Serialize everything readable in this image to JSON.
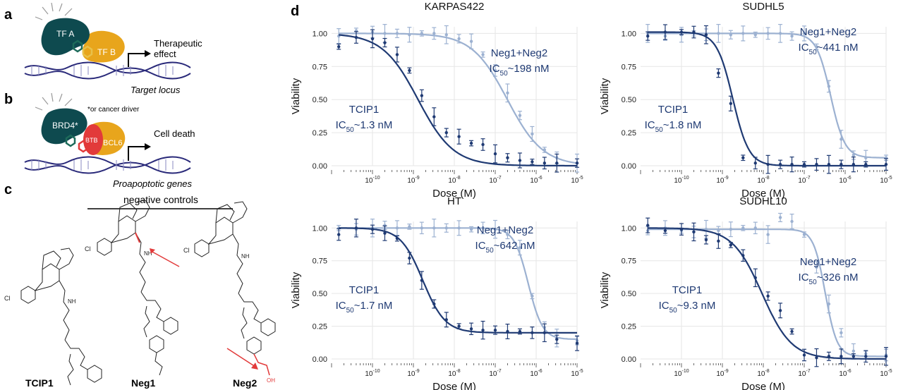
{
  "panels": {
    "a": "a",
    "b": "b",
    "c": "c",
    "d": "d"
  },
  "panel_a": {
    "tf_a": "TF A",
    "tf_b": "TF B",
    "effect": "Therapeutic\neffect",
    "locus": "Target locus"
  },
  "panel_b": {
    "brd4": "BRD4*",
    "bcl6": "BCL6",
    "btb": "BTB",
    "note": "*or cancer driver",
    "effect": "Cell death",
    "genes": "Proapoptotic genes"
  },
  "panel_c": {
    "header": "negative controls",
    "compounds": [
      "TCIP1",
      "Neg1",
      "Neg2"
    ]
  },
  "colors": {
    "tcip1": "#1f3a73",
    "neg": "#9cb1d1",
    "tf_a": "#0e4a4f",
    "tf_b": "#e8a51c",
    "brd4": "#0e4a4f",
    "bcl6": "#e8a51c",
    "btb": "#e23a3a",
    "dna": "#2a2a7a",
    "arrow_red": "#e23a3a"
  },
  "chart_data": [
    {
      "type": "scatter",
      "title": "KARPAS422",
      "xlabel": "Dose (M)",
      "ylabel": "Viability",
      "xscale": "log",
      "xlim": [
        1e-11,
        1e-05
      ],
      "ylim": [
        0,
        1.05
      ],
      "yticks": [
        "0.00",
        "0.25",
        "0.50",
        "0.75",
        "1.00"
      ],
      "xticks": [
        "10-10",
        "10-9",
        "10-8",
        "10-7",
        "10-6",
        "10-5"
      ],
      "series": [
        {
          "name": "TCIP1",
          "ic50_label": "IC50~1.3 nM",
          "ic50": 1.3e-09,
          "hill": 1.0,
          "bottom": 0.0,
          "top": 1.0,
          "points": [
            [
              1.5e-11,
              0.9
            ],
            [
              4e-11,
              0.97
            ],
            [
              1e-10,
              0.96
            ],
            [
              2e-10,
              0.93
            ],
            [
              4e-10,
              0.84
            ],
            [
              8e-10,
              0.72
            ],
            [
              1.6e-09,
              0.53
            ],
            [
              3.2e-09,
              0.37
            ],
            [
              6.4e-09,
              0.25
            ],
            [
              1.3e-08,
              0.22
            ],
            [
              2.6e-08,
              0.17
            ],
            [
              5e-08,
              0.16
            ],
            [
              1e-07,
              0.09
            ],
            [
              2e-07,
              0.06
            ],
            [
              4e-07,
              0.04
            ],
            [
              8e-07,
              0.03
            ],
            [
              1.6e-06,
              0.02
            ],
            [
              3.2e-06,
              0.02
            ],
            [
              1e-05,
              0.02
            ]
          ]
        },
        {
          "name": "Neg1+Neg2",
          "ic50_label": "IC50~198 nM",
          "ic50": 1.98e-07,
          "hill": 1.0,
          "bottom": 0.0,
          "top": 1.0,
          "points": [
            [
              1.5e-11,
              0.98
            ],
            [
              4e-11,
              1.02
            ],
            [
              1e-10,
              1.01
            ],
            [
              2e-10,
              1.0
            ],
            [
              4e-10,
              1.0
            ],
            [
              8e-10,
              0.99
            ],
            [
              1.6e-09,
              1.0
            ],
            [
              3.2e-09,
              1.0
            ],
            [
              6.4e-09,
              0.99
            ],
            [
              1.3e-08,
              0.96
            ],
            [
              2.6e-08,
              0.94
            ],
            [
              5e-08,
              0.84
            ],
            [
              1e-07,
              0.72
            ],
            [
              2e-07,
              0.55
            ],
            [
              4e-07,
              0.38
            ],
            [
              8e-07,
              0.24
            ],
            [
              1.6e-06,
              0.12
            ],
            [
              3.2e-06,
              0.06
            ],
            [
              1e-05,
              0.02
            ]
          ]
        }
      ]
    },
    {
      "type": "scatter",
      "title": "SUDHL5",
      "xlabel": "Dose (M)",
      "ylabel": "Viability",
      "xscale": "log",
      "xlim": [
        1e-11,
        1e-05
      ],
      "ylim": [
        0,
        1.05
      ],
      "yticks": [
        "0.00",
        "0.25",
        "0.50",
        "0.75",
        "1.00"
      ],
      "xticks": [
        "10-10",
        "10-9",
        "10-8",
        "10-7",
        "10-6",
        "10-5"
      ],
      "series": [
        {
          "name": "TCIP1",
          "ic50_label": "IC50~1.8 nM",
          "ic50": 1.8e-09,
          "hill": 2.2,
          "bottom": 0.0,
          "top": 1.01,
          "points": [
            [
              1.5e-11,
              0.98
            ],
            [
              4e-11,
              1.01
            ],
            [
              1e-10,
              1.01
            ],
            [
              2e-10,
              1.01
            ],
            [
              4e-10,
              0.99
            ],
            [
              8e-10,
              0.7
            ],
            [
              1.6e-09,
              0.47
            ],
            [
              3.2e-09,
              0.06
            ],
            [
              6.4e-09,
              0.02
            ],
            [
              1.3e-08,
              0.01
            ],
            [
              2.6e-08,
              0.01
            ],
            [
              5e-08,
              0.01
            ],
            [
              1e-07,
              0.01
            ],
            [
              2e-07,
              0.01
            ],
            [
              4e-07,
              0.01
            ],
            [
              8e-07,
              0.01
            ],
            [
              1.6e-06,
              0.01
            ],
            [
              3.2e-06,
              0.01
            ],
            [
              1e-05,
              0.01
            ]
          ]
        },
        {
          "name": "Neg1+Neg2",
          "ic50_label": "IC50~441 nM",
          "ic50": 4.41e-07,
          "hill": 2.5,
          "bottom": 0.06,
          "top": 1.0,
          "points": [
            [
              1.5e-11,
              1.0
            ],
            [
              4e-11,
              0.98
            ],
            [
              1e-10,
              0.99
            ],
            [
              2e-10,
              1.0
            ],
            [
              4e-10,
              0.99
            ],
            [
              8e-10,
              1.0
            ],
            [
              1.6e-09,
              0.99
            ],
            [
              3.2e-09,
              1.0
            ],
            [
              6.4e-09,
              0.99
            ],
            [
              1.3e-08,
              1.0
            ],
            [
              2.6e-08,
              1.0
            ],
            [
              5e-08,
              0.98
            ],
            [
              1e-07,
              1.0
            ],
            [
              2e-07,
              0.9
            ],
            [
              4e-07,
              0.6
            ],
            [
              8e-07,
              0.2
            ],
            [
              1.6e-06,
              0.08
            ],
            [
              3.2e-06,
              0.06
            ],
            [
              1e-05,
              0.06
            ]
          ]
        }
      ]
    },
    {
      "type": "scatter",
      "title": "HT",
      "xlabel": "Dose (M)",
      "ylabel": "Viability",
      "xscale": "log",
      "xlim": [
        1e-11,
        1e-05
      ],
      "ylim": [
        0,
        1.05
      ],
      "yticks": [
        "0.00",
        "0.25",
        "0.50",
        "0.75",
        "1.00"
      ],
      "xticks": [
        "10-10",
        "10-9",
        "10-8",
        "10-7",
        "10-6",
        "10-5"
      ],
      "series": [
        {
          "name": "TCIP1",
          "ic50_label": "IC50~1.7 nM",
          "ic50": 1.7e-09,
          "hill": 1.6,
          "bottom": 0.2,
          "top": 1.0,
          "points": [
            [
              1.5e-11,
              0.95
            ],
            [
              4e-11,
              1.0
            ],
            [
              1e-10,
              0.99
            ],
            [
              2e-10,
              0.96
            ],
            [
              4e-10,
              0.92
            ],
            [
              8e-10,
              0.77
            ],
            [
              1.6e-09,
              0.6
            ],
            [
              3.2e-09,
              0.42
            ],
            [
              6.4e-09,
              0.3
            ],
            [
              1.3e-08,
              0.25
            ],
            [
              2.6e-08,
              0.23
            ],
            [
              5e-08,
              0.22
            ],
            [
              1e-07,
              0.22
            ],
            [
              2e-07,
              0.21
            ],
            [
              4e-07,
              0.21
            ],
            [
              8e-07,
              0.2
            ],
            [
              1.6e-06,
              0.2
            ],
            [
              3.2e-06,
              0.15
            ],
            [
              1e-05,
              0.12
            ]
          ]
        },
        {
          "name": "Neg1+Neg2",
          "ic50_label": "IC50~642 nM",
          "ic50": 6.42e-07,
          "hill": 2.5,
          "bottom": 0.15,
          "top": 1.0,
          "points": [
            [
              1.5e-11,
              1.0
            ],
            [
              4e-11,
              0.99
            ],
            [
              1e-10,
              1.0
            ],
            [
              2e-10,
              1.02
            ],
            [
              4e-10,
              1.0
            ],
            [
              8e-10,
              1.01
            ],
            [
              1.6e-09,
              1.0
            ],
            [
              3.2e-09,
              1.0
            ],
            [
              6.4e-09,
              1.0
            ],
            [
              1.3e-08,
              1.0
            ],
            [
              2.6e-08,
              0.99
            ],
            [
              5e-08,
              1.0
            ],
            [
              1e-07,
              0.99
            ],
            [
              2e-07,
              0.95
            ],
            [
              4e-07,
              0.85
            ],
            [
              8e-07,
              0.48
            ],
            [
              1.6e-06,
              0.24
            ],
            [
              3.2e-06,
              0.16
            ],
            [
              1e-05,
              0.14
            ]
          ]
        }
      ]
    },
    {
      "type": "scatter",
      "title": "SUDHL10",
      "xlabel": "Dose (M)",
      "ylabel": "Viability",
      "xscale": "log",
      "xlim": [
        1e-11,
        1e-05
      ],
      "ylim": [
        0,
        1.05
      ],
      "yticks": [
        "0.00",
        "0.25",
        "0.50",
        "0.75",
        "1.00"
      ],
      "xticks": [
        "10-10",
        "10-9",
        "10-8",
        "10-7",
        "10-6",
        "10-5"
      ],
      "series": [
        {
          "name": "TCIP1",
          "ic50_label": "IC50~9.3 nM",
          "ic50": 9.3e-09,
          "hill": 1.2,
          "bottom": 0.0,
          "top": 1.0,
          "points": [
            [
              1.5e-11,
              1.02
            ],
            [
              4e-11,
              0.98
            ],
            [
              1e-10,
              0.99
            ],
            [
              2e-10,
              0.97
            ],
            [
              4e-10,
              0.91
            ],
            [
              8e-10,
              0.9
            ],
            [
              1.6e-09,
              0.87
            ],
            [
              3.2e-09,
              0.79
            ],
            [
              6.4e-09,
              0.62
            ],
            [
              1.3e-08,
              0.48
            ],
            [
              2.6e-08,
              0.37
            ],
            [
              5e-08,
              0.21
            ],
            [
              1e-07,
              0.03
            ],
            [
              2e-07,
              0.01
            ],
            [
              4e-07,
              0.02
            ],
            [
              8e-07,
              0.02
            ],
            [
              1.6e-06,
              0.02
            ],
            [
              3.2e-06,
              0.02
            ],
            [
              1e-05,
              0.02
            ]
          ]
        },
        {
          "name": "Neg1+Neg2",
          "ic50_label": "IC50~326 nM",
          "ic50": 3.26e-07,
          "hill": 3.0,
          "bottom": 0.02,
          "top": 0.99,
          "points": [
            [
              1.5e-11,
              0.98
            ],
            [
              4e-11,
              1.0
            ],
            [
              1e-10,
              0.98
            ],
            [
              2e-10,
              0.97
            ],
            [
              4e-10,
              0.99
            ],
            [
              8e-10,
              0.98
            ],
            [
              1.6e-09,
              0.99
            ],
            [
              3.2e-09,
              1.0
            ],
            [
              6.4e-09,
              1.0
            ],
            [
              1.3e-08,
              0.95
            ],
            [
              2.6e-08,
              1.08
            ],
            [
              5e-08,
              1.05
            ],
            [
              1e-07,
              0.95
            ],
            [
              2e-07,
              0.7
            ],
            [
              4e-07,
              0.42
            ],
            [
              8e-07,
              0.2
            ],
            [
              1.6e-06,
              0.06
            ],
            [
              3.2e-06,
              0.04
            ],
            [
              1e-05,
              0.03
            ]
          ]
        }
      ]
    }
  ]
}
